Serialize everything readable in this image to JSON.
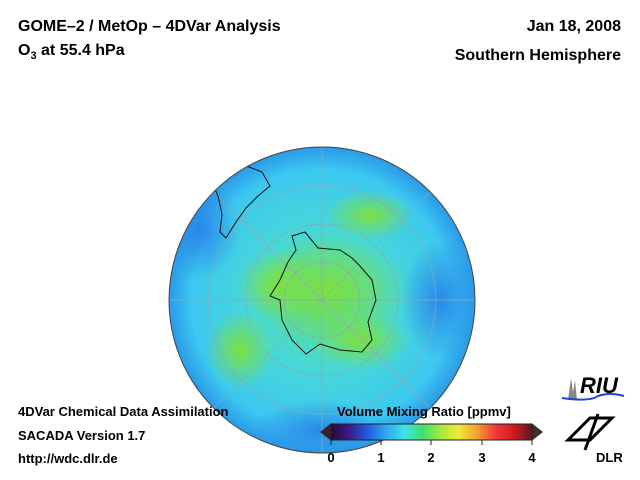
{
  "header": {
    "title": "GOME–2 / MetOp – 4DVar Analysis",
    "species": "O",
    "species_sub": "3",
    "level": " at 55.4 hPa",
    "date": "Jan 18, 2008",
    "region": "Southern Hemisphere"
  },
  "footer": {
    "line1": "4DVar Chemical Data Assimilation",
    "line2": "SACADA Version 1.7",
    "line3": "http://wdc.dlr.de"
  },
  "colorbar": {
    "label": "Volume Mixing Ratio [ppmv]",
    "ticks": [
      "0",
      "1",
      "2",
      "3",
      "4"
    ],
    "range": [
      0,
      4
    ],
    "colors": [
      "#2a0a3a",
      "#3a1a8a",
      "#1f5ae0",
      "#2fa8f0",
      "#40e0e8",
      "#3ee070",
      "#a8e840",
      "#f0e838",
      "#f0a030",
      "#f03a38",
      "#d01a20",
      "#5a1a20"
    ]
  },
  "logos": {
    "riu": "RIU",
    "dlr": "DLR"
  }
}
